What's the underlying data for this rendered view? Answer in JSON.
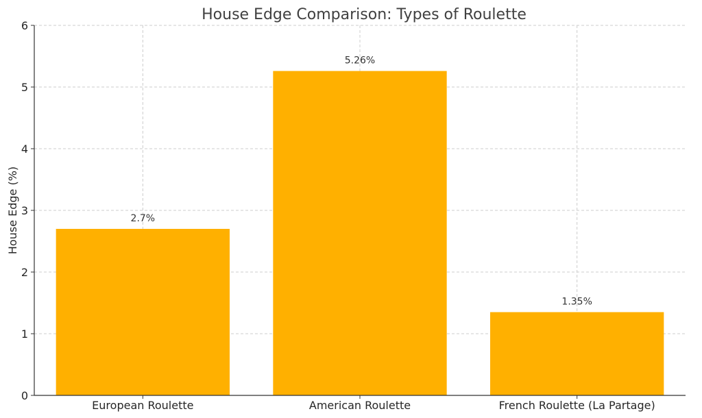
{
  "chart_data": {
    "type": "bar",
    "title": "House Edge Comparison: Types of Roulette",
    "xlabel": "",
    "ylabel": "House Edge (%)",
    "categories": [
      "European Roulette",
      "American Roulette",
      "French Roulette (La Partage)"
    ],
    "values": [
      2.7,
      5.26,
      1.35
    ],
    "value_labels": [
      "2.7%",
      "5.26%",
      "1.35%"
    ],
    "ylim": [
      0,
      6
    ],
    "yticks": [
      0,
      1,
      2,
      3,
      4,
      5,
      6
    ],
    "grid": true,
    "bar_color": "#FFB000"
  }
}
